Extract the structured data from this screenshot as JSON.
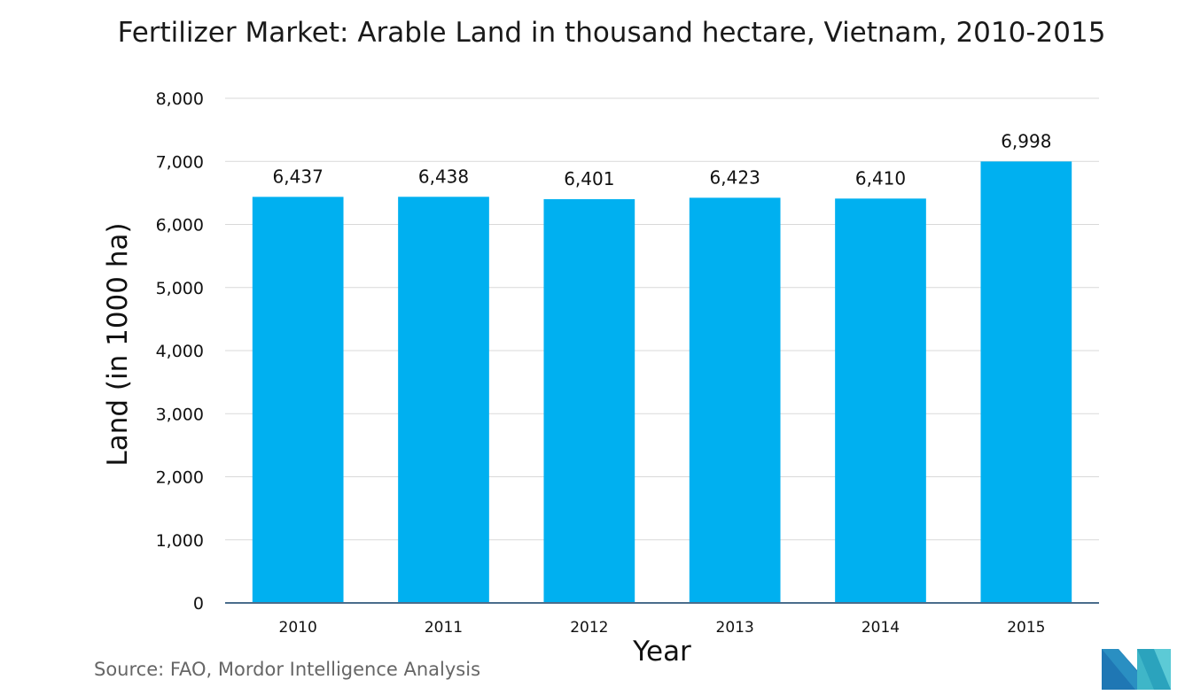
{
  "chart_data": {
    "type": "bar",
    "title": "Fertilizer Market: Arable Land in thousand hectare, Vietnam, 2010-2015",
    "xlabel": "Year",
    "ylabel": "Land (in 1000 ha)",
    "categories": [
      "2010",
      "2011",
      "2012",
      "2013",
      "2014",
      "2015"
    ],
    "values": [
      6437,
      6438,
      6401,
      6423,
      6410,
      6998
    ],
    "data_labels": [
      "6,437",
      "6,438",
      "6,401",
      "6,423",
      "6,410",
      "6,998"
    ],
    "ylim": [
      0,
      8000
    ],
    "yticks": [
      0,
      1000,
      2000,
      3000,
      4000,
      5000,
      6000,
      7000,
      8000
    ],
    "ytick_labels": [
      "0",
      "1,000",
      "2,000",
      "3,000",
      "4,000",
      "5,000",
      "6,000",
      "7,000",
      "8,000"
    ],
    "grid": true,
    "legend": "none",
    "bar_color": "#00b0f0",
    "grid_color": "#d9d9d9",
    "axis_color": "#4a6d8c"
  },
  "source": "Source: FAO, Mordor Intelligence Analysis",
  "logo": {
    "icon": "mordor-intelligence-logo-icon",
    "colors": [
      "#1f77b4",
      "#3fb6c8"
    ]
  }
}
